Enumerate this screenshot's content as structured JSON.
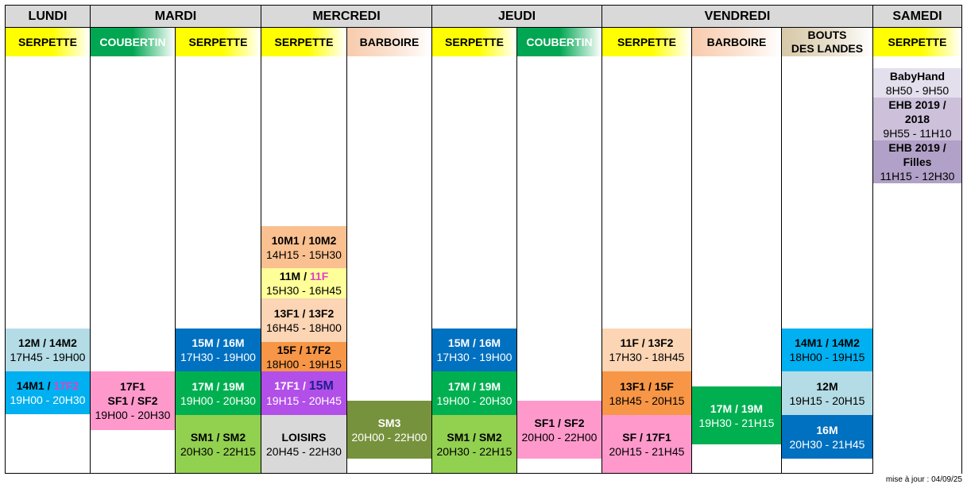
{
  "days": [
    {
      "label": "LUNDI"
    },
    {
      "label": "MARDI"
    },
    {
      "label": "MERCREDI"
    },
    {
      "label": "JEUDI"
    },
    {
      "label": "VENDREDI"
    },
    {
      "label": "SAMEDI"
    }
  ],
  "venues": [
    {
      "line1": "SERPETTE"
    },
    {
      "line1": "COUBERTIN"
    },
    {
      "line1": "SERPETTE"
    },
    {
      "line1": "SERPETTE"
    },
    {
      "line1": "BARBOIRE"
    },
    {
      "line1": "SERPETTE"
    },
    {
      "line1": "COUBERTIN"
    },
    {
      "line1": "SERPETTE"
    },
    {
      "line1": "BARBOIRE"
    },
    {
      "line1": "BOUTS",
      "line2": "DES LANDES"
    },
    {
      "line1": "SERPETTE"
    }
  ],
  "slots": {
    "lundi_a": {
      "title": "12M / 14M2",
      "hours": "17H45 - 19H00"
    },
    "lundi_b": {
      "title_a": "14M1 / ",
      "title_b": "17F2",
      "hours": "19H00 - 20H30"
    },
    "mardi_c_a": {
      "line1": "17F1",
      "line2": "SF1 / SF2",
      "hours": "19H00 - 20H30"
    },
    "mardi_s_a": {
      "title": "15M / 16M",
      "hours": "17H30 - 19H00"
    },
    "mardi_s_b": {
      "title": "17M / 19M",
      "hours": "19H00 - 20H30"
    },
    "mardi_s_c": {
      "title": "SM1 / SM2",
      "hours": "20H30 - 22H15"
    },
    "mer_a": {
      "title": "10M1 / 10M2",
      "hours": "14H15 - 15H30"
    },
    "mer_b": {
      "title_a": "11M / ",
      "title_b": "11F",
      "hours": "15H30 - 16H45"
    },
    "mer_c": {
      "title": "13F1 / 13F2",
      "hours": "16H45 - 18H00"
    },
    "mer_d": {
      "title": "15F / 17F2",
      "hours": "18H00 - 19H15"
    },
    "mer_e": {
      "title_a": "17F1 / ",
      "title_b": "15M",
      "hours": "19H15 - 20H45"
    },
    "mer_f": {
      "title": "LOISIRS",
      "hours": "20H45 - 22H30"
    },
    "mer_barb": {
      "title": "SM3",
      "hours": "20H00 - 22H00"
    },
    "jeu_s_a": {
      "title": "15M / 16M",
      "hours": "17H30 - 19H00"
    },
    "jeu_s_b": {
      "title": "17M / 19M",
      "hours": "19H00 - 20H30"
    },
    "jeu_s_c": {
      "title": "SM1 / SM2",
      "hours": "20H30 - 22H15"
    },
    "jeu_c_a": {
      "title": "SF1 / SF2",
      "hours": "20H00 - 22H00"
    },
    "ven_s_a": {
      "title": "11F / 13F2",
      "hours": "17H30 - 18H45"
    },
    "ven_s_b": {
      "title": "13F1 / 15F",
      "hours": "18H45 - 20H15"
    },
    "ven_s_c": {
      "title": "SF / 17F1",
      "hours": "20H15 - 21H45"
    },
    "ven_barb": {
      "title": "17M / 19M",
      "hours": "19H30 - 21H15"
    },
    "ven_bl_a": {
      "title": "14M1 / 14M2",
      "hours": "18H00 - 19H15"
    },
    "ven_bl_b": {
      "title": "12M",
      "hours": "19H15 - 20H15"
    },
    "ven_bl_c": {
      "title": "16M",
      "hours": "20H30 - 21H45"
    },
    "sam_a": {
      "title": "BabyHand",
      "hours": "8H50 - 9H50"
    },
    "sam_b": {
      "line1": "EHB 2019 /",
      "line2": "2018",
      "hours": "9H55 - 11H10"
    },
    "sam_c": {
      "line1": "EHB 2019 /",
      "line2": "Filles",
      "hours": "11H15 - 12H30"
    }
  },
  "colors": {
    "serpette": "#ffff00",
    "coubertin": "#00a651",
    "barboire": "#f8cbad",
    "bouts_des_landes": "#d6c8a8",
    "day_header": "#d9d9d9"
  },
  "footer": {
    "update": "mise à jour : 04/09/25"
  }
}
